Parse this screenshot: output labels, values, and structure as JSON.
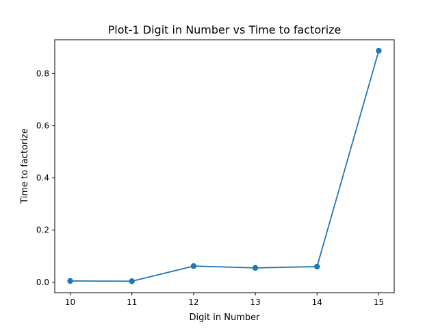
{
  "chart_data": {
    "type": "line",
    "title": "Plot-1 Digit in Number vs Time to factorize",
    "xlabel": "Digit in Number",
    "ylabel": "Time to factorize",
    "x": [
      10,
      11,
      12,
      13,
      14,
      15
    ],
    "series": [
      {
        "values": [
          0.005,
          0.004,
          0.062,
          0.055,
          0.06,
          0.888
        ],
        "color": "#1f77b4"
      }
    ],
    "xlim": [
      9.75,
      15.25
    ],
    "ylim": [
      -0.04,
      0.93
    ],
    "xticks": [
      10,
      11,
      12,
      13,
      14,
      15
    ],
    "yticks": [
      0.0,
      0.2,
      0.4,
      0.6,
      0.8
    ],
    "grid": false,
    "markers": true
  }
}
